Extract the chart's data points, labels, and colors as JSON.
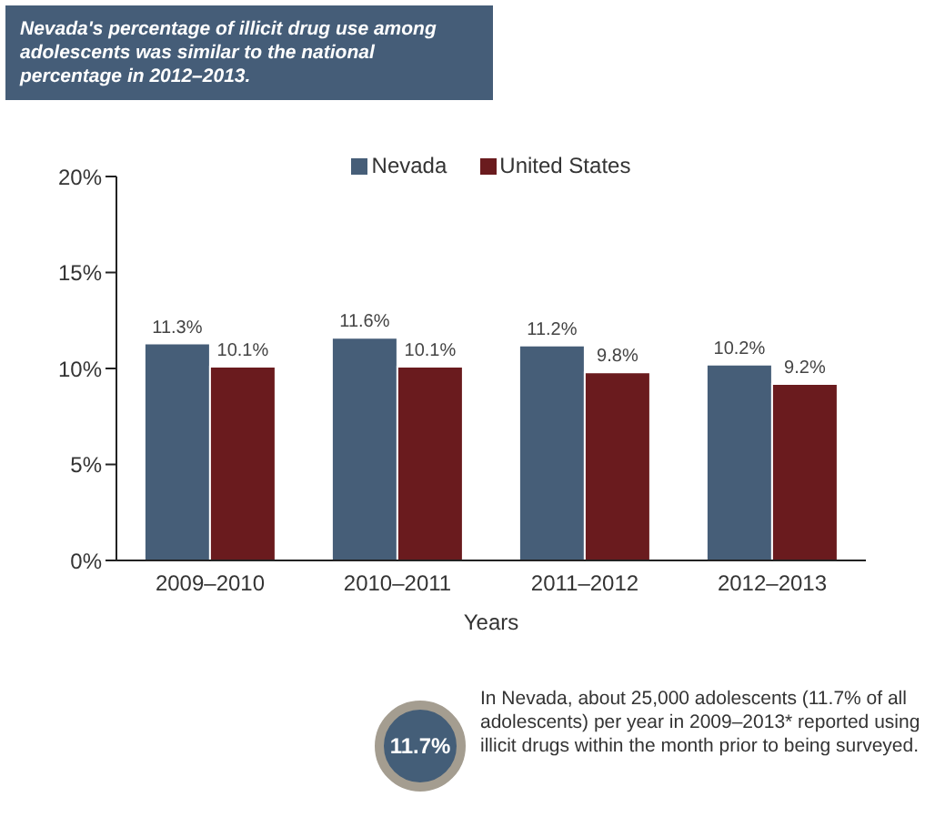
{
  "chart_data": {
    "type": "bar",
    "title": "Nevada's percentage of illicit drug use among adolescents was similar to the national percentage in 2012–2013.",
    "xlabel": "Years",
    "categories": [
      "2009–2010",
      "2010–2011",
      "2011–2012",
      "2012–2013"
    ],
    "series": [
      {
        "name": "Nevada",
        "color": "#465e78",
        "values": [
          11.3,
          11.6,
          11.2,
          10.2
        ],
        "value_labels": [
          "11.3%",
          "11.6%",
          "11.2%",
          "10.2%"
        ]
      },
      {
        "name": "United States",
        "color": "#6a1b1e",
        "values": [
          10.1,
          10.1,
          9.8,
          9.2
        ],
        "value_labels": [
          "10.1%",
          "10.1%",
          "9.8%",
          "9.2%"
        ]
      }
    ],
    "ylim": [
      0,
      20
    ],
    "yticks": [
      {
        "value": 0,
        "label": "0%"
      },
      {
        "value": 5,
        "label": "5%"
      },
      {
        "value": 10,
        "label": "10%"
      },
      {
        "value": 15,
        "label": "15%"
      },
      {
        "value": 20,
        "label": "20%"
      }
    ],
    "legend": "top",
    "grid": false,
    "annotations": [
      "11.7%",
      "In Nevada, about 25,000 adolescents (11.7% of all adolescents) per year in 2009–2013* reported using illicit drugs within the month prior to being surveyed."
    ]
  }
}
